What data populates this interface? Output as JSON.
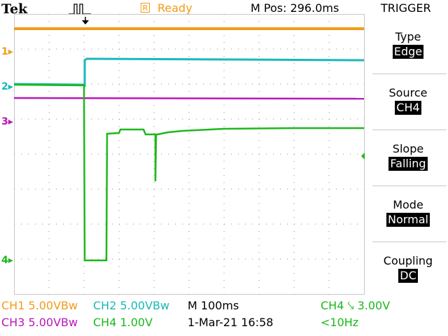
{
  "header": {
    "logo": "Tek",
    "acq_state_icon": "R",
    "acq_state": "Ready",
    "position": "M Pos: 296.0ms",
    "menu_title": "TRIGGER"
  },
  "menu": [
    {
      "label": "Type",
      "value": "Edge"
    },
    {
      "label": "Source",
      "value": "CH4"
    },
    {
      "label": "Slope",
      "value": "Falling"
    },
    {
      "label": "Mode",
      "value": "Normal"
    },
    {
      "label": "Coupling",
      "value": "DC"
    }
  ],
  "channel_markers": [
    {
      "label": "1",
      "color": "#f29b1b"
    },
    {
      "label": "2",
      "color": "#19b8b8"
    },
    {
      "label": "3",
      "color": "#b818b8"
    },
    {
      "label": "4",
      "color": "#1cb81c"
    }
  ],
  "status": {
    "ch1": "CH1  5.00VBw",
    "ch2": "CH2  5.00VBw",
    "ch3": "CH3  5.00VBw",
    "ch4": "CH4  1.00V",
    "timebase": "M 100ms",
    "date": "1-Mar-21 16:58",
    "trigger": "CH4 ⤥ 3.00V",
    "freq": "<10Hz"
  },
  "colors": {
    "ch1": "#f29b1b",
    "ch2": "#19b8b8",
    "ch3": "#b818b8",
    "ch4": "#1cb81c"
  }
}
